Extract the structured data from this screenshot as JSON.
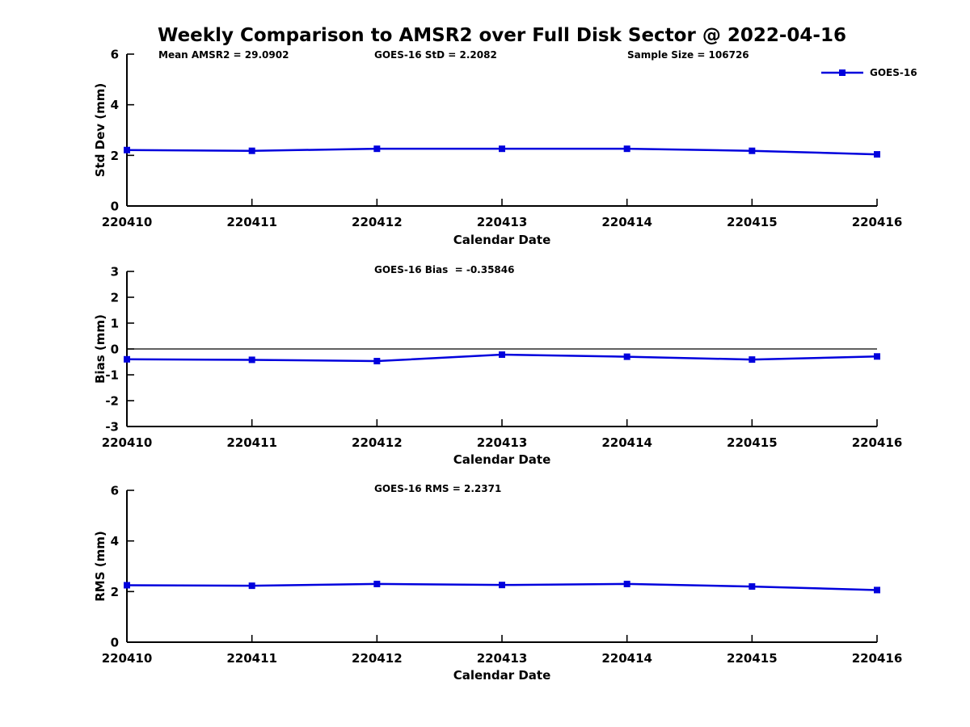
{
  "title": "Weekly Comparison to AMSR2 over Full Disk Sector @ 2022-04-16",
  "legend": {
    "label": "GOES-16",
    "color": "#0000dd"
  },
  "chart_data": [
    {
      "type": "line",
      "name": "std-dev",
      "annotations": [
        "Mean AMSR2 = 29.0902",
        "GOES-16 StD = 2.2082",
        "Sample Size = 106726"
      ],
      "xlabel": "Calendar Date",
      "ylabel": "Std Dev (mm)",
      "categories": [
        "220410",
        "220411",
        "220412",
        "220413",
        "220414",
        "220415",
        "220416"
      ],
      "series": [
        {
          "name": "GOES-16",
          "values": [
            2.21,
            2.18,
            2.26,
            2.26,
            2.26,
            2.18,
            2.04
          ]
        }
      ],
      "ylim": [
        0,
        6
      ],
      "yticks": [
        0,
        2,
        4,
        6
      ],
      "grid": false,
      "legend_position": "upper-right",
      "zero_line": false
    },
    {
      "type": "line",
      "name": "bias",
      "annotations": [
        "GOES-16 Bias  = -0.35846"
      ],
      "xlabel": "Calendar Date",
      "ylabel": "Bias (mm)",
      "categories": [
        "220410",
        "220411",
        "220412",
        "220413",
        "220414",
        "220415",
        "220416"
      ],
      "series": [
        {
          "name": "GOES-16",
          "values": [
            -0.4,
            -0.42,
            -0.47,
            -0.22,
            -0.3,
            -0.41,
            -0.29
          ]
        }
      ],
      "ylim": [
        -3,
        3
      ],
      "yticks": [
        3,
        2,
        1,
        0,
        -1,
        -2,
        -3
      ],
      "grid": false,
      "zero_line": true
    },
    {
      "type": "line",
      "name": "rms",
      "annotations": [
        "GOES-16 RMS = 2.2371"
      ],
      "xlabel": "Calendar Date",
      "ylabel": "RMS (mm)",
      "categories": [
        "220410",
        "220411",
        "220412",
        "220413",
        "220414",
        "220415",
        "220416"
      ],
      "series": [
        {
          "name": "GOES-16",
          "values": [
            2.25,
            2.23,
            2.3,
            2.26,
            2.3,
            2.2,
            2.06
          ]
        }
      ],
      "ylim": [
        0,
        6
      ],
      "yticks": [
        0,
        2,
        4,
        6
      ],
      "grid": false,
      "zero_line": false
    }
  ]
}
